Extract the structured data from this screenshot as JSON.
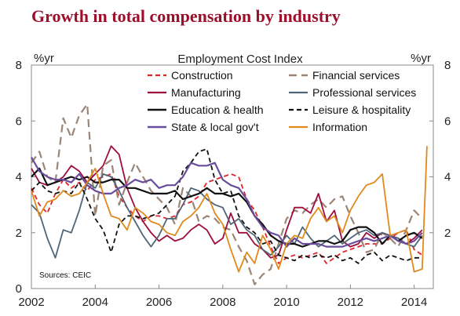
{
  "title": "Growth in total compensation by industry",
  "chart_data": {
    "type": "line",
    "title": "Employment Cost Index",
    "ylabel_left": "%yr",
    "ylabel_right": "%yr",
    "source": "Sources: CEIC",
    "xlim": [
      2002,
      2014.6
    ],
    "ylim": [
      0,
      8
    ],
    "x_ticks": [
      2002,
      2004,
      2006,
      2008,
      2010,
      2012,
      2014
    ],
    "y_ticks_left": [
      0,
      2,
      4,
      6,
      8
    ],
    "y_ticks_right": [
      2,
      4,
      6,
      8
    ],
    "legend_position": "top",
    "series": [
      {
        "name": "Construction",
        "color": "#e0242b",
        "dash": "6,4",
        "width": 1.8,
        "x": [
          2002,
          2002.25,
          2002.5,
          2002.75,
          2003,
          2003.25,
          2003.5,
          2003.75,
          2004,
          2004.25,
          2004.5,
          2004.75,
          2005,
          2005.25,
          2005.5,
          2005.75,
          2006,
          2006.25,
          2006.5,
          2006.75,
          2007,
          2007.25,
          2007.5,
          2007.75,
          2008,
          2008.25,
          2008.5,
          2008.75,
          2009,
          2009.25,
          2009.5,
          2009.75,
          2010,
          2010.25,
          2010.5,
          2010.75,
          2011,
          2011.25,
          2011.5,
          2011.75,
          2012,
          2012.25,
          2012.5,
          2012.75,
          2013,
          2013.25,
          2013.5,
          2013.75,
          2014,
          2014.25
        ],
        "y": [
          3.6,
          3.0,
          2.7,
          3.4,
          3.9,
          3.6,
          3.8,
          3.5,
          3.9,
          4.0,
          4.1,
          3.3,
          2.9,
          2.6,
          2.4,
          2.6,
          2.6,
          2.5,
          2.6,
          3.0,
          3.1,
          3.3,
          3.8,
          3.9,
          4.0,
          4.1,
          4.0,
          3.2,
          2.8,
          2.2,
          1.5,
          0.9,
          1.1,
          1.2,
          1.1,
          1.2,
          1.3,
          0.9,
          1.1,
          1.3,
          1.4,
          1.5,
          1.6,
          1.6,
          1.6,
          1.8,
          2.0,
          2.1,
          1.4,
          1.2
        ]
      },
      {
        "name": "Financial services",
        "color": "#9b8576",
        "dash": "10,6",
        "width": 2.2,
        "x": [
          2002,
          2002.25,
          2002.5,
          2002.75,
          2003,
          2003.25,
          2003.5,
          2003.75,
          2004,
          2004.25,
          2004.5,
          2004.75,
          2005,
          2005.25,
          2005.5,
          2005.75,
          2006,
          2006.25,
          2006.5,
          2006.75,
          2007,
          2007.25,
          2007.5,
          2007.75,
          2008,
          2008.25,
          2008.5,
          2008.75,
          2009,
          2009.25,
          2009.5,
          2009.75,
          2010,
          2010.25,
          2010.5,
          2010.75,
          2011,
          2011.25,
          2011.5,
          2011.75,
          2012,
          2012.25,
          2012.5,
          2012.75,
          2013,
          2013.25,
          2013.5,
          2013.75,
          2014,
          2014.25
        ],
        "y": [
          4.5,
          4.9,
          4.0,
          3.8,
          6.1,
          5.4,
          6.2,
          6.6,
          2.6,
          4.4,
          4.6,
          3.0,
          3.8,
          4.5,
          4.0,
          3.5,
          3.2,
          2.9,
          2.3,
          3.6,
          3.3,
          2.4,
          2.6,
          2.5,
          2.2,
          2.1,
          1.5,
          1.0,
          0.15,
          0.5,
          0.7,
          1.6,
          2.5,
          2.8,
          2.7,
          3.0,
          3.2,
          2.9,
          3.2,
          3.3,
          2.6,
          2.0,
          1.3,
          1.4,
          2.0,
          1.8,
          1.5,
          2.1,
          2.8,
          2.5
        ]
      },
      {
        "name": "Manufacturing",
        "color": "#9c0f3c",
        "dash": "",
        "width": 1.8,
        "x": [
          2002,
          2002.25,
          2002.5,
          2002.75,
          2003,
          2003.25,
          2003.5,
          2003.75,
          2004,
          2004.25,
          2004.5,
          2004.75,
          2005,
          2005.25,
          2005.5,
          2005.75,
          2006,
          2006.25,
          2006.5,
          2006.75,
          2007,
          2007.25,
          2007.5,
          2007.75,
          2008,
          2008.25,
          2008.5,
          2008.75,
          2009,
          2009.25,
          2009.5,
          2009.75,
          2010,
          2010.25,
          2010.5,
          2010.75,
          2011,
          2011.25,
          2011.5,
          2011.75,
          2012,
          2012.25,
          2012.5,
          2012.75,
          2013,
          2013.25,
          2013.5,
          2013.75,
          2014,
          2014.25
        ],
        "y": [
          4.3,
          3.8,
          3.7,
          3.8,
          4.0,
          4.4,
          4.2,
          3.8,
          4.1,
          4.4,
          5.1,
          4.8,
          3.6,
          2.9,
          2.4,
          2.0,
          1.7,
          1.9,
          1.7,
          1.8,
          2.1,
          2.3,
          2.1,
          1.6,
          1.8,
          2.7,
          2.0,
          2.0,
          1.6,
          1.4,
          1.1,
          1.2,
          2.1,
          2.9,
          2.9,
          2.7,
          3.4,
          2.4,
          2.8,
          1.7,
          1.5,
          1.6,
          2.0,
          1.8,
          2.0,
          1.9,
          1.8,
          1.6,
          1.8,
          2.1
        ]
      },
      {
        "name": "Professional services",
        "color": "#4e6677",
        "dash": "",
        "width": 1.8,
        "x": [
          2002,
          2002.25,
          2002.5,
          2002.75,
          2003,
          2003.25,
          2003.5,
          2003.75,
          2004,
          2004.25,
          2004.5,
          2004.75,
          2005,
          2005.25,
          2005.5,
          2005.75,
          2006,
          2006.25,
          2006.5,
          2006.75,
          2007,
          2007.25,
          2007.5,
          2007.75,
          2008,
          2008.25,
          2008.5,
          2008.75,
          2009,
          2009.25,
          2009.5,
          2009.75,
          2010,
          2010.25,
          2010.5,
          2010.75,
          2011,
          2011.25,
          2011.5,
          2011.75,
          2012,
          2012.25,
          2012.5,
          2012.75,
          2013,
          2013.25,
          2013.5,
          2013.75,
          2014,
          2014.25
        ],
        "y": [
          3.0,
          2.7,
          1.8,
          1.1,
          2.1,
          2.0,
          2.8,
          3.8,
          3.6,
          4.1,
          4.0,
          3.5,
          2.9,
          2.4,
          1.9,
          1.5,
          1.9,
          2.5,
          2.5,
          3.0,
          3.6,
          3.5,
          3.2,
          3.0,
          2.9,
          2.3,
          2.5,
          2.1,
          1.9,
          1.4,
          1.2,
          1.5,
          1.9,
          1.6,
          2.2,
          1.8,
          1.5,
          1.7,
          1.9,
          1.6,
          1.8,
          2.0,
          2.1,
          1.9,
          2.0,
          1.9,
          1.8,
          1.6,
          1.5,
          1.9
        ]
      },
      {
        "name": "Education & health",
        "color": "#111111",
        "dash": "",
        "width": 2.2,
        "x": [
          2002,
          2002.25,
          2002.5,
          2002.75,
          2003,
          2003.25,
          2003.5,
          2003.75,
          2004,
          2004.25,
          2004.5,
          2004.75,
          2005,
          2005.25,
          2005.5,
          2005.75,
          2006,
          2006.25,
          2006.5,
          2006.75,
          2007,
          2007.25,
          2007.5,
          2007.75,
          2008,
          2008.25,
          2008.5,
          2008.75,
          2009,
          2009.25,
          2009.5,
          2009.75,
          2010,
          2010.25,
          2010.5,
          2010.75,
          2011,
          2011.25,
          2011.5,
          2011.75,
          2012,
          2012.25,
          2012.5,
          2012.75,
          2013,
          2013.25,
          2013.5,
          2013.75,
          2014,
          2014.25
        ],
        "y": [
          4.0,
          4.3,
          3.7,
          3.8,
          3.9,
          4.0,
          3.9,
          4.0,
          3.8,
          3.8,
          3.9,
          3.9,
          3.6,
          3.6,
          3.5,
          3.4,
          3.4,
          3.4,
          3.5,
          3.2,
          3.3,
          3.4,
          3.6,
          3.4,
          3.4,
          3.3,
          3.4,
          3.1,
          2.6,
          2.3,
          1.9,
          1.7,
          1.6,
          1.6,
          1.5,
          1.6,
          1.7,
          1.7,
          1.6,
          1.7,
          2.1,
          2.2,
          2.2,
          2.0,
          1.6,
          1.9,
          1.7,
          1.9,
          2.0,
          1.8
        ]
      },
      {
        "name": "Leisure & hospitality",
        "color": "#111111",
        "dash": "6,4",
        "width": 1.8,
        "x": [
          2002,
          2002.25,
          2002.5,
          2002.75,
          2003,
          2003.25,
          2003.5,
          2003.75,
          2004,
          2004.25,
          2004.5,
          2004.75,
          2005,
          2005.25,
          2005.5,
          2005.75,
          2006,
          2006.25,
          2006.5,
          2006.75,
          2007,
          2007.25,
          2007.5,
          2007.75,
          2008,
          2008.25,
          2008.5,
          2008.75,
          2009,
          2009.25,
          2009.5,
          2009.75,
          2010,
          2010.25,
          2010.5,
          2010.75,
          2011,
          2011.25,
          2011.5,
          2011.75,
          2012,
          2012.25,
          2012.5,
          2012.75,
          2013,
          2013.25,
          2013.5,
          2013.75,
          2014,
          2014.25
        ],
        "y": [
          3.5,
          3.8,
          3.5,
          3.4,
          3.5,
          3.4,
          3.8,
          3.2,
          2.5,
          2.1,
          1.3,
          2.3,
          2.6,
          2.6,
          2.5,
          2.6,
          2.7,
          3.0,
          3.3,
          4.2,
          4.5,
          4.9,
          5.0,
          3.9,
          3.4,
          3.5,
          2.6,
          2.2,
          2.0,
          1.6,
          1.7,
          1.2,
          1.1,
          1.0,
          1.2,
          1.1,
          1.2,
          1.1,
          1.2,
          1.0,
          1.1,
          0.9,
          1.2,
          1.3,
          1.0,
          1.2,
          1.1,
          1.0,
          1.1,
          1.1
        ]
      },
      {
        "name": "State & local gov't",
        "color": "#6a4c9c",
        "dash": "",
        "width": 2.2,
        "x": [
          2002,
          2002.25,
          2002.5,
          2002.75,
          2003,
          2003.25,
          2003.5,
          2003.75,
          2004,
          2004.25,
          2004.5,
          2004.75,
          2005,
          2005.25,
          2005.5,
          2005.75,
          2006,
          2006.25,
          2006.5,
          2006.75,
          2007,
          2007.25,
          2007.5,
          2007.75,
          2008,
          2008.25,
          2008.5,
          2008.75,
          2009,
          2009.25,
          2009.5,
          2009.75,
          2010,
          2010.25,
          2010.5,
          2010.75,
          2011,
          2011.25,
          2011.5,
          2011.75,
          2012,
          2012.25,
          2012.5,
          2012.75,
          2013,
          2013.25,
          2013.5,
          2013.75,
          2014,
          2014.25
        ],
        "y": [
          4.7,
          4.2,
          4.0,
          3.9,
          3.9,
          3.8,
          4.1,
          3.7,
          3.5,
          3.4,
          3.4,
          3.6,
          3.7,
          3.9,
          3.8,
          3.9,
          3.6,
          3.7,
          3.7,
          4.0,
          4.5,
          4.4,
          4.4,
          4.5,
          3.9,
          3.7,
          3.6,
          3.2,
          2.6,
          2.2,
          2.0,
          1.9,
          1.5,
          1.8,
          1.6,
          1.6,
          1.6,
          1.5,
          1.5,
          1.5,
          1.6,
          1.7,
          1.8,
          1.7,
          1.8,
          1.9,
          1.7,
          1.6,
          1.7,
          2.0
        ]
      },
      {
        "name": "Information",
        "color": "#e08a1e",
        "dash": "",
        "width": 1.8,
        "x": [
          2002,
          2002.25,
          2002.5,
          2002.75,
          2003,
          2003.25,
          2003.5,
          2003.75,
          2004,
          2004.25,
          2004.5,
          2004.75,
          2005,
          2005.25,
          2005.5,
          2005.75,
          2006,
          2006.25,
          2006.5,
          2006.75,
          2007,
          2007.25,
          2007.5,
          2007.75,
          2008,
          2008.25,
          2008.5,
          2008.75,
          2009,
          2009.25,
          2009.5,
          2009.75,
          2010,
          2010.25,
          2010.5,
          2010.75,
          2011,
          2011.25,
          2011.5,
          2011.75,
          2012,
          2012.25,
          2012.5,
          2012.75,
          2013,
          2013.25,
          2013.5,
          2013.75,
          2014,
          2014.25,
          2014.4
        ],
        "y": [
          3.5,
          2.6,
          3.1,
          3.2,
          3.5,
          3.3,
          3.4,
          3.8,
          4.3,
          3.4,
          2.6,
          2.5,
          2.1,
          2.9,
          2.7,
          2.4,
          2.3,
          2.0,
          1.9,
          2.4,
          2.6,
          2.9,
          3.4,
          2.7,
          2.3,
          1.4,
          0.6,
          1.3,
          0.9,
          1.9,
          1.4,
          0.7,
          1.6,
          1.9,
          1.8,
          2.5,
          2.9,
          2.4,
          2.6,
          2.0,
          2.8,
          3.3,
          3.7,
          3.8,
          4.1,
          1.9,
          2.0,
          2.1,
          0.6,
          0.7,
          5.1
        ]
      }
    ]
  }
}
